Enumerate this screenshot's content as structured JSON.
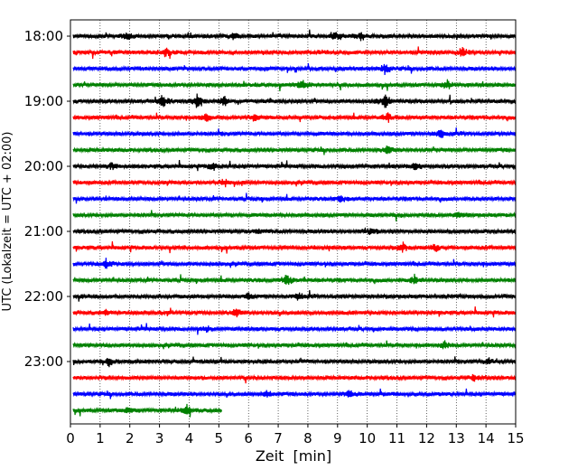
{
  "chart_data": {
    "type": "line",
    "xlabel": "Zeit  [min]",
    "ylabel": "UTC (Lokalzeit = UTC + 02:00)",
    "xlim": [
      0,
      15
    ],
    "x_ticks": [
      "0",
      "1",
      "2",
      "3",
      "4",
      "5",
      "6",
      "7",
      "8",
      "9",
      "10",
      "11",
      "12",
      "13",
      "14",
      "15"
    ],
    "y_ticks": [
      {
        "label": "18:00",
        "row": 0
      },
      {
        "label": "19:00",
        "row": 4
      },
      {
        "label": "20:00",
        "row": 8
      },
      {
        "label": "21:00",
        "row": 12
      },
      {
        "label": "22:00",
        "row": 16
      },
      {
        "label": "23:00",
        "row": 20
      }
    ],
    "grid": "vertical dotted at each minute",
    "trace_interval_min": 15,
    "colors": [
      "#000000",
      "#ff0000",
      "#0000ff",
      "#008000"
    ],
    "traces": [
      {
        "start": "18:00",
        "color": "#000000",
        "end_min": 15
      },
      {
        "start": "18:15",
        "color": "#ff0000",
        "end_min": 15
      },
      {
        "start": "18:30",
        "color": "#0000ff",
        "end_min": 15
      },
      {
        "start": "18:45",
        "color": "#008000",
        "end_min": 15
      },
      {
        "start": "19:00",
        "color": "#000000",
        "end_min": 15
      },
      {
        "start": "19:15",
        "color": "#ff0000",
        "end_min": 15
      },
      {
        "start": "19:30",
        "color": "#0000ff",
        "end_min": 15
      },
      {
        "start": "19:45",
        "color": "#008000",
        "end_min": 15
      },
      {
        "start": "20:00",
        "color": "#000000",
        "end_min": 15
      },
      {
        "start": "20:15",
        "color": "#ff0000",
        "end_min": 15
      },
      {
        "start": "20:30",
        "color": "#0000ff",
        "end_min": 15
      },
      {
        "start": "20:45",
        "color": "#008000",
        "end_min": 15
      },
      {
        "start": "21:00",
        "color": "#000000",
        "end_min": 15
      },
      {
        "start": "21:15",
        "color": "#ff0000",
        "end_min": 15
      },
      {
        "start": "21:30",
        "color": "#0000ff",
        "end_min": 15
      },
      {
        "start": "21:45",
        "color": "#008000",
        "end_min": 15
      },
      {
        "start": "22:00",
        "color": "#000000",
        "end_min": 15
      },
      {
        "start": "22:15",
        "color": "#ff0000",
        "end_min": 15
      },
      {
        "start": "22:30",
        "color": "#0000ff",
        "end_min": 15
      },
      {
        "start": "22:45",
        "color": "#008000",
        "end_min": 15
      },
      {
        "start": "23:00",
        "color": "#000000",
        "end_min": 15
      },
      {
        "start": "23:15",
        "color": "#ff0000",
        "end_min": 15
      },
      {
        "start": "23:30",
        "color": "#0000ff",
        "end_min": 15
      },
      {
        "start": "23:45",
        "color": "#008000",
        "end_min": 5.1
      }
    ],
    "events": [
      [
        [
          1.9,
          0.5
        ],
        [
          5.5,
          0.5
        ],
        [
          8.9,
          0.6
        ],
        [
          9.8,
          0.5
        ]
      ],
      [
        [
          3.2,
          0.5
        ],
        [
          13.2,
          0.6
        ]
      ],
      [
        [
          10.6,
          0.7
        ]
      ],
      [
        [
          7.8,
          0.6
        ],
        [
          12.7,
          0.7
        ]
      ],
      [
        [
          3.1,
          1.0
        ],
        [
          4.3,
          1.1
        ],
        [
          5.2,
          0.6
        ],
        [
          10.6,
          1.0
        ]
      ],
      [
        [
          4.6,
          0.6
        ],
        [
          6.2,
          0.5
        ],
        [
          10.7,
          0.5
        ]
      ],
      [
        [
          12.5,
          0.6
        ]
      ],
      [
        [
          10.7,
          0.5
        ]
      ],
      [
        [
          1.4,
          0.5
        ],
        [
          4.8,
          0.5
        ],
        [
          11.6,
          0.5
        ]
      ],
      [
        [
          5.2,
          0.5
        ]
      ],
      [
        [
          9.1,
          0.4
        ]
      ],
      [
        [
          13.1,
          0.5
        ]
      ],
      [
        [
          6.3,
          0.4
        ],
        [
          10.1,
          0.4
        ]
      ],
      [
        [
          11.2,
          0.7
        ],
        [
          12.3,
          0.6
        ]
      ],
      [
        [
          1.2,
          0.6
        ]
      ],
      [
        [
          7.3,
          0.7
        ],
        [
          11.6,
          0.6
        ]
      ],
      [
        [
          6.0,
          0.4
        ],
        [
          7.7,
          0.6
        ]
      ],
      [
        [
          1.2,
          0.4
        ],
        [
          5.6,
          0.5
        ]
      ],
      [
        [
          4.6,
          0.4
        ]
      ],
      [
        [
          12.6,
          0.6
        ]
      ],
      [
        [
          1.3,
          0.5
        ],
        [
          14.1,
          0.4
        ]
      ],
      [
        [
          13.6,
          0.4
        ]
      ],
      [
        [
          6.6,
          0.5
        ],
        [
          9.4,
          0.5
        ]
      ],
      [
        [
          1.9,
          0.5
        ],
        [
          3.9,
          0.7
        ]
      ]
    ]
  }
}
